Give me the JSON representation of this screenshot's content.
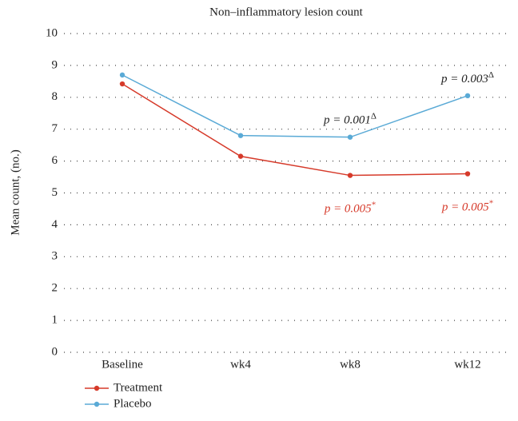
{
  "chart_data": {
    "type": "line",
    "title": "Non–inflammatory lesion count",
    "ylabel": "Mean count, (no.)",
    "categories": [
      "Baseline",
      "wk4",
      "wk8",
      "wk12"
    ],
    "series": [
      {
        "name": "Treatment",
        "color": "#d63a2a",
        "values": [
          8.42,
          6.15,
          5.55,
          5.6
        ],
        "value_annotations": [
          null,
          null,
          {
            "text": "p = 0.005",
            "sup": "*"
          },
          {
            "text": "p = 0.005",
            "sup": "*"
          }
        ]
      },
      {
        "name": "Placebo",
        "color": "#5aaad6",
        "values": [
          8.7,
          6.8,
          6.75,
          8.05
        ],
        "value_annotations": [
          null,
          null,
          {
            "text": "p = 0.001",
            "sup": "Δ"
          },
          {
            "text": "p = 0.003",
            "sup": "Δ"
          }
        ]
      }
    ],
    "ylim": [
      0,
      10
    ],
    "yticks": [
      0,
      1,
      2,
      3,
      4,
      5,
      6,
      7,
      8,
      9,
      10
    ],
    "grid": true,
    "legend": "bottom-left"
  }
}
